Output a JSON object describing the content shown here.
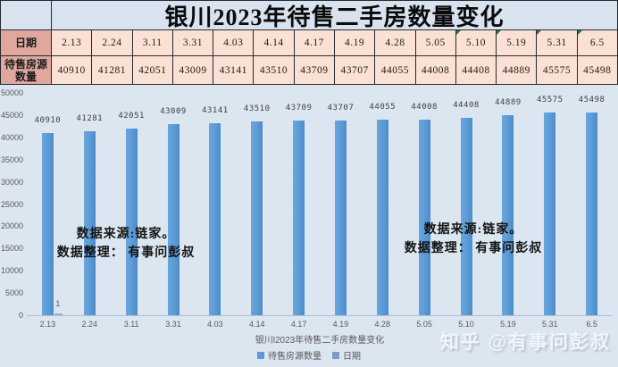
{
  "title": "银川2023年待售二手房数量变化",
  "table": {
    "row1_header": "日期",
    "row2_header": "待售房源数量",
    "dates": [
      "2.13",
      "2.24",
      "3.11",
      "3.31",
      "4.03",
      "4.14",
      "4.17",
      "4.19",
      "4.28",
      "5.05",
      "5.10",
      "5.19",
      "5.31",
      "6.5"
    ],
    "values": [
      "40910",
      "41281",
      "42051",
      "43009",
      "43141",
      "43510",
      "43709",
      "43707",
      "44055",
      "44008",
      "44408",
      "44889",
      "45575",
      "45498"
    ],
    "error_marker_indices": [
      10,
      11,
      12,
      13
    ]
  },
  "chart_data": {
    "type": "bar",
    "title": "银川l2023年待售二手房数量变化",
    "categories": [
      "2.13",
      "2.24",
      "3.11",
      "3.31",
      "4.03",
      "4.14",
      "4.17",
      "4.19",
      "4.28",
      "5.05",
      "5.10",
      "5.19",
      "5.31",
      "6.5"
    ],
    "series": [
      {
        "name": "待售房源数量",
        "color": "#5b9bd5",
        "values": [
          40910,
          41281,
          42051,
          43009,
          43141,
          43510,
          43709,
          43707,
          44055,
          44008,
          44408,
          44889,
          45575,
          45498
        ]
      },
      {
        "name": "日期",
        "color": "#7a9cc6",
        "values": [
          2.13,
          2.24,
          3.11,
          3.31,
          4.03,
          4.14,
          4.17,
          4.19,
          4.28,
          5.05,
          5.1,
          5.19,
          5.31,
          6.5
        ]
      }
    ],
    "series2_first_point_label": "1",
    "ylim": [
      0,
      50000
    ],
    "ytick_step": 5000,
    "grid": false,
    "legend_position": "bottom",
    "data_labels": true
  },
  "annotation": {
    "line1": "数据来源:链家。",
    "line2": "数据整理： 有事问彭叔"
  },
  "watermark": "知乎 @有事问彭叔"
}
